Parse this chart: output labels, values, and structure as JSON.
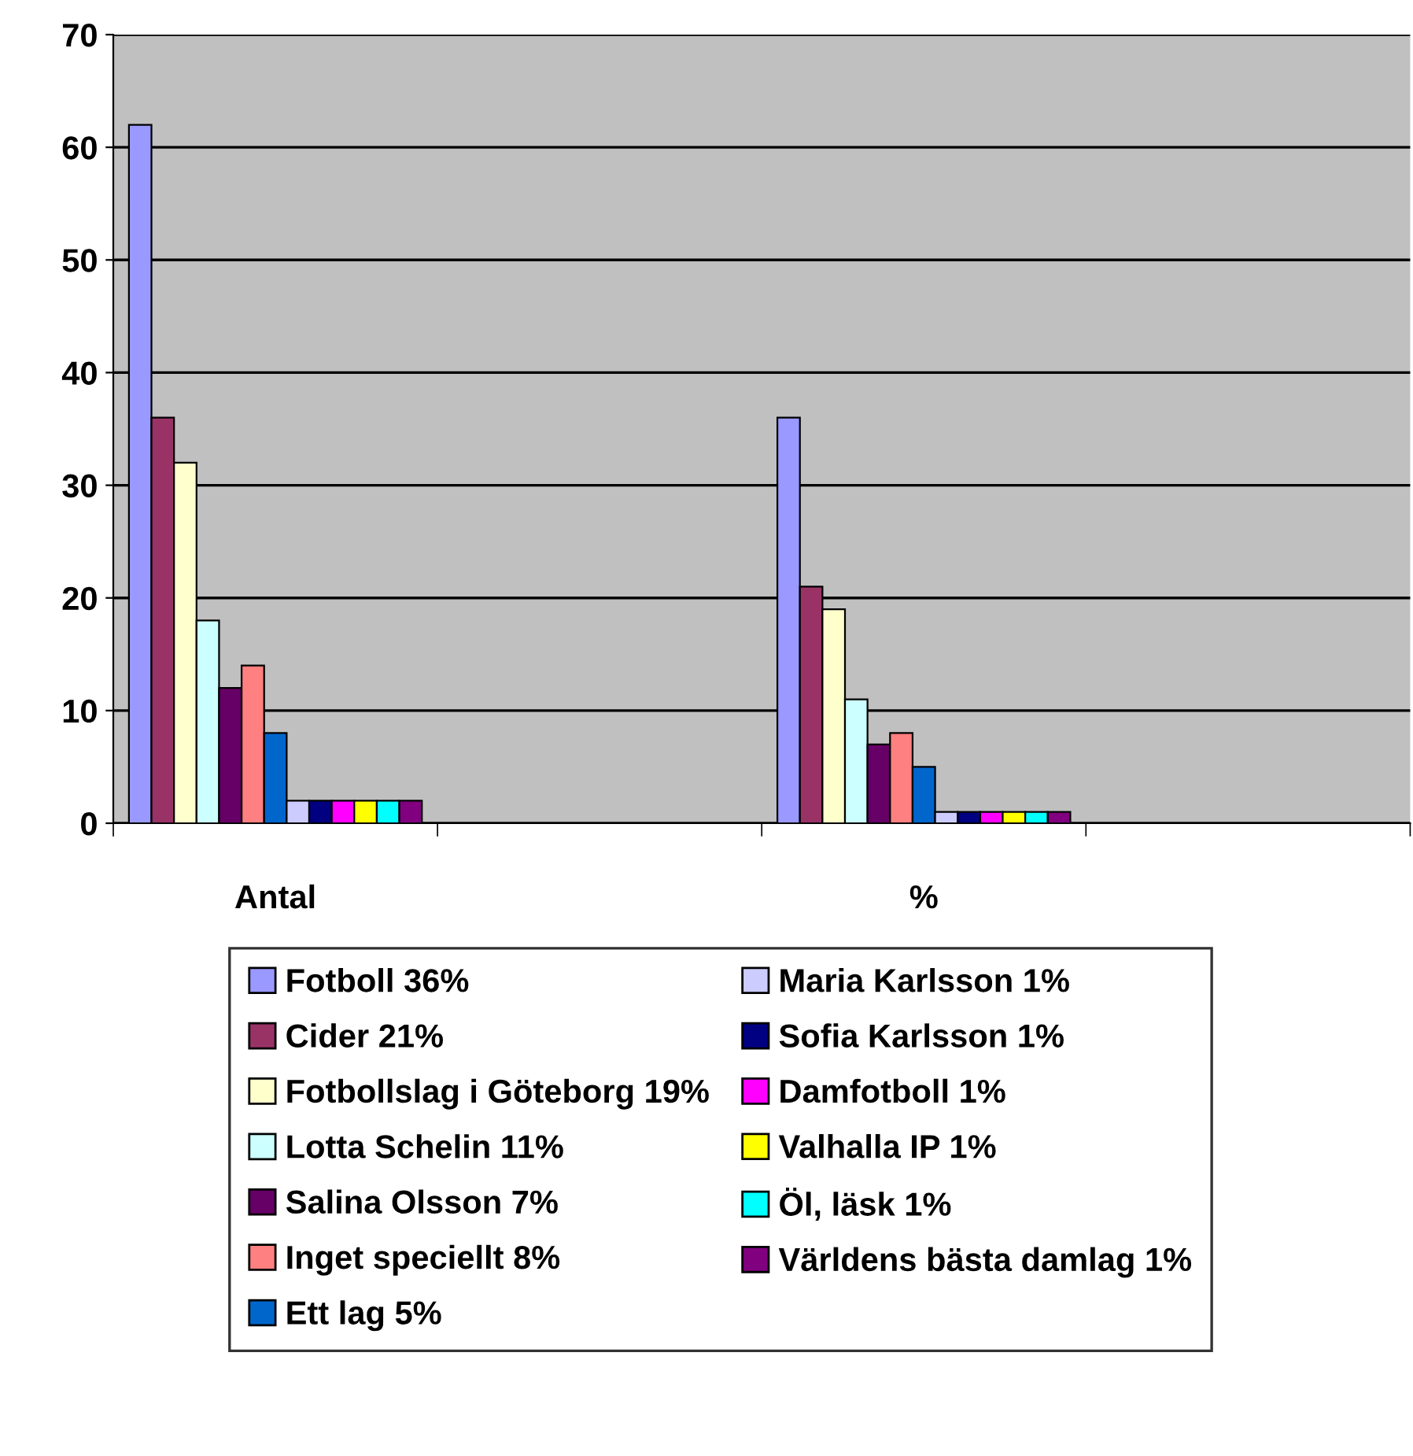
{
  "chart_data": {
    "type": "bar",
    "categories": [
      "Antal",
      null,
      "%",
      null
    ],
    "series": [
      {
        "name": "Fotboll 36%",
        "color": "#9999ff",
        "values": [
          62,
          null,
          36,
          null
        ]
      },
      {
        "name": "Cider 21%",
        "color": "#993366",
        "values": [
          36,
          null,
          21,
          null
        ]
      },
      {
        "name": "Fotbollslag i Göteborg 19%",
        "color": "#ffffcc",
        "values": [
          32,
          null,
          19,
          null
        ]
      },
      {
        "name": "Lotta Schelin 11%",
        "color": "#ccffff",
        "values": [
          18,
          null,
          11,
          null
        ]
      },
      {
        "name": "Salina Olsson 7%",
        "color": "#660066",
        "values": [
          12,
          null,
          7,
          null
        ]
      },
      {
        "name": "Inget speciellt 8%",
        "color": "#ff8080",
        "values": [
          14,
          null,
          8,
          null
        ]
      },
      {
        "name": "Ett lag 5%",
        "color": "#0066cc",
        "values": [
          8,
          null,
          5,
          null
        ]
      },
      {
        "name": "Maria Karlsson 1%",
        "color": "#ccccff",
        "values": [
          2,
          null,
          1,
          null
        ]
      },
      {
        "name": "Sofia Karlsson 1%",
        "color": "#000080",
        "values": [
          2,
          null,
          1,
          null
        ]
      },
      {
        "name": "Damfotboll 1%",
        "color": "#ff00ff",
        "values": [
          2,
          null,
          1,
          null
        ]
      },
      {
        "name": "Valhalla IP 1%",
        "color": "#ffff00",
        "values": [
          2,
          null,
          1,
          null
        ]
      },
      {
        "name": "Öl, läsk 1%",
        "color": "#00ffff",
        "values": [
          2,
          null,
          1,
          null
        ]
      },
      {
        "name": "Världens bästa damlag 1%",
        "color": "#800080",
        "values": [
          2,
          null,
          1,
          null
        ]
      }
    ],
    "ylim": [
      0,
      70
    ],
    "yticks": [
      0,
      10,
      20,
      30,
      40,
      50,
      60,
      70
    ],
    "grid": "y",
    "legend": "bottom"
  }
}
